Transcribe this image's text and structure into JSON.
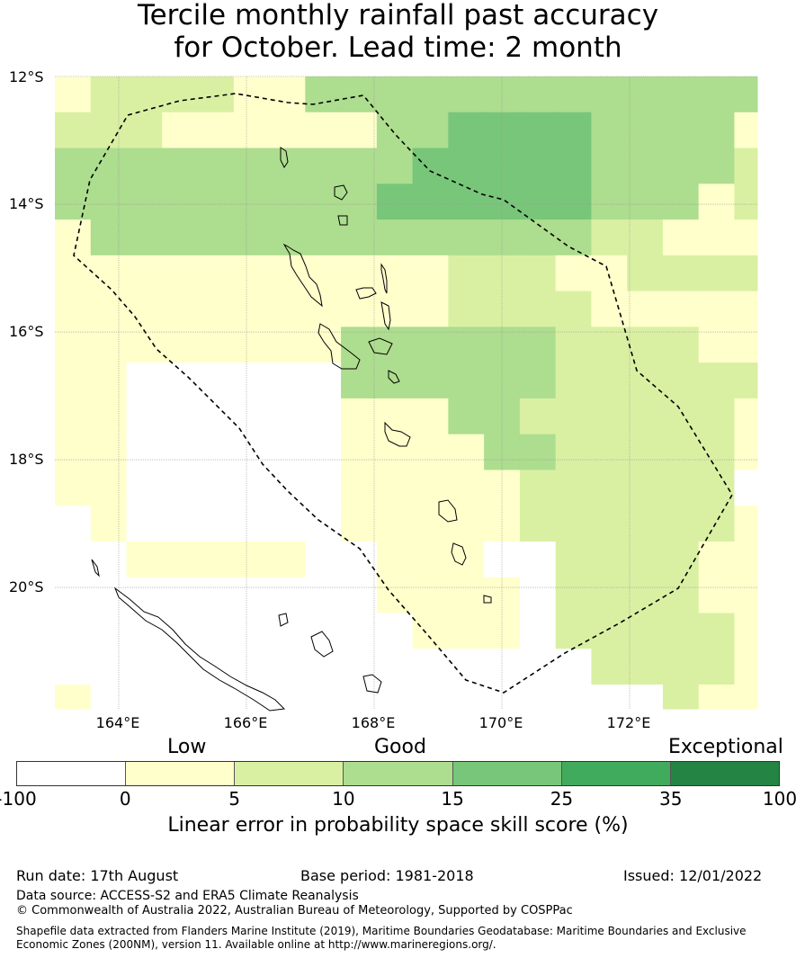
{
  "title_line1": "Tercile monthly rainfall past accuracy",
  "title_line2": "for October. Lead time: 2 month",
  "map": {
    "lat_labels": [
      "12°S",
      "14°S",
      "16°S",
      "18°S",
      "20°S"
    ],
    "lon_labels": [
      "164°E",
      "166°E",
      "168°E",
      "170°E",
      "172°E"
    ],
    "lat_range": [
      -21.9,
      -12.0
    ],
    "lon_range": [
      163.0,
      174.0
    ],
    "grid_resolution_deg": 0.56,
    "grid_origin": [
      163.0,
      -12.0
    ],
    "skill_grid": [
      "1222211333333333333311",
      "2221111113344443333111",
      "3333333333444443333222",
      "3333333334444443331222",
      "1333333333333332211122",
      "1111111111122211222221",
      "1111111111122221111122",
      "1111111133333322221112",
      "1100000033333322222211",
      "1100000011133222222111",
      "1100000011113322222111",
      "1100000011111222222000",
      "0100000011111222222100",
      "0011111001110022221100",
      "0000000001111022221111",
      "0000000000111022222111",
      "0000000000000002222111",
      "1000000000000000021111",
      "1000000000100001111111",
      "0000000000000000000011",
      "0000000000000000000011"
    ],
    "island_labels": []
  },
  "legend": {
    "category_labels": [
      "Low",
      "Good",
      "Exceptional"
    ],
    "colors": [
      "#ffffff",
      "#ffffcc",
      "#d9f0a3",
      "#addd8e",
      "#78c679",
      "#41ab5d",
      "#238443"
    ],
    "ticks": [
      "-100",
      "0",
      "5",
      "10",
      "15",
      "25",
      "35",
      "100"
    ],
    "label": "Linear error in probability space skill score (%)"
  },
  "footer": {
    "run_date": "Run date: 17th August",
    "base_period": "Base period: 1981-2018",
    "issued": "Issued: 12/01/2022",
    "data_source": "Data source: ACCESS-S2 and ERA5 Climate Reanalysis",
    "copyright": "© Commonwealth of Australia 2022, Australian Bureau of Meteorology, Supported by COSPPac",
    "shapefile": "Shapefile data extracted from Flanders Marine Institute (2019), Maritime Boundaries Geodatabase: Maritime Boundaries and Exclusive Economic Zones (200NM), version 11. Available online at http://www.marineregions.org/."
  }
}
